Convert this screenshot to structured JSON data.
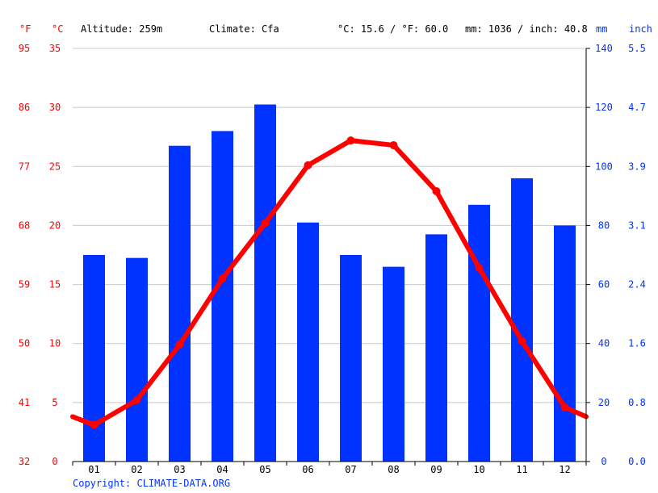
{
  "header": {
    "unit_f": "°F",
    "unit_c": "°C",
    "altitude": "Altitude: 259m",
    "climate": "Climate: Cfa",
    "temp_avg": "°C: 15.6 / °F: 60.0",
    "precip_total": "mm: 1036 / inch: 40.8",
    "unit_mm": "mm",
    "unit_inch": "inch"
  },
  "copyright": "Copyright: CLIMATE-DATA.ORG",
  "colors": {
    "temperature": "#ff0000",
    "precipitation": "#0033ff",
    "grid": "#c8c8c8"
  },
  "chart_data": {
    "type": "bar",
    "categories": [
      "01",
      "02",
      "03",
      "04",
      "05",
      "06",
      "07",
      "08",
      "09",
      "10",
      "11",
      "12"
    ],
    "series": [
      {
        "type": "bar",
        "axis": "right",
        "unit": "mm",
        "values": [
          70,
          69,
          107,
          112,
          121,
          81,
          70,
          66,
          77,
          87,
          96,
          80
        ]
      },
      {
        "type": "line",
        "axis": "left",
        "unit": "°C",
        "values": [
          3.1,
          5.2,
          9.9,
          15.5,
          20.2,
          25.1,
          27.2,
          26.8,
          22.9,
          16.4,
          10.2,
          4.6
        ]
      }
    ],
    "left_axis_c": {
      "ticks": [
        "0",
        "5",
        "10",
        "15",
        "20",
        "25",
        "30",
        "35"
      ],
      "range": [
        0,
        35
      ]
    },
    "left_axis_f": {
      "ticks": [
        "32",
        "41",
        "50",
        "59",
        "68",
        "77",
        "86",
        "95"
      ]
    },
    "right_axis_mm": {
      "ticks": [
        "0",
        "20",
        "40",
        "60",
        "80",
        "100",
        "120",
        "140"
      ],
      "range": [
        0,
        140
      ]
    },
    "right_axis_inch": {
      "ticks": [
        "0.0",
        "0.8",
        "1.6",
        "2.4",
        "3.1",
        "3.9",
        "4.7",
        "5.5"
      ]
    },
    "line_edges": {
      "left": 3.8,
      "right": 3.8
    },
    "grid": true
  }
}
